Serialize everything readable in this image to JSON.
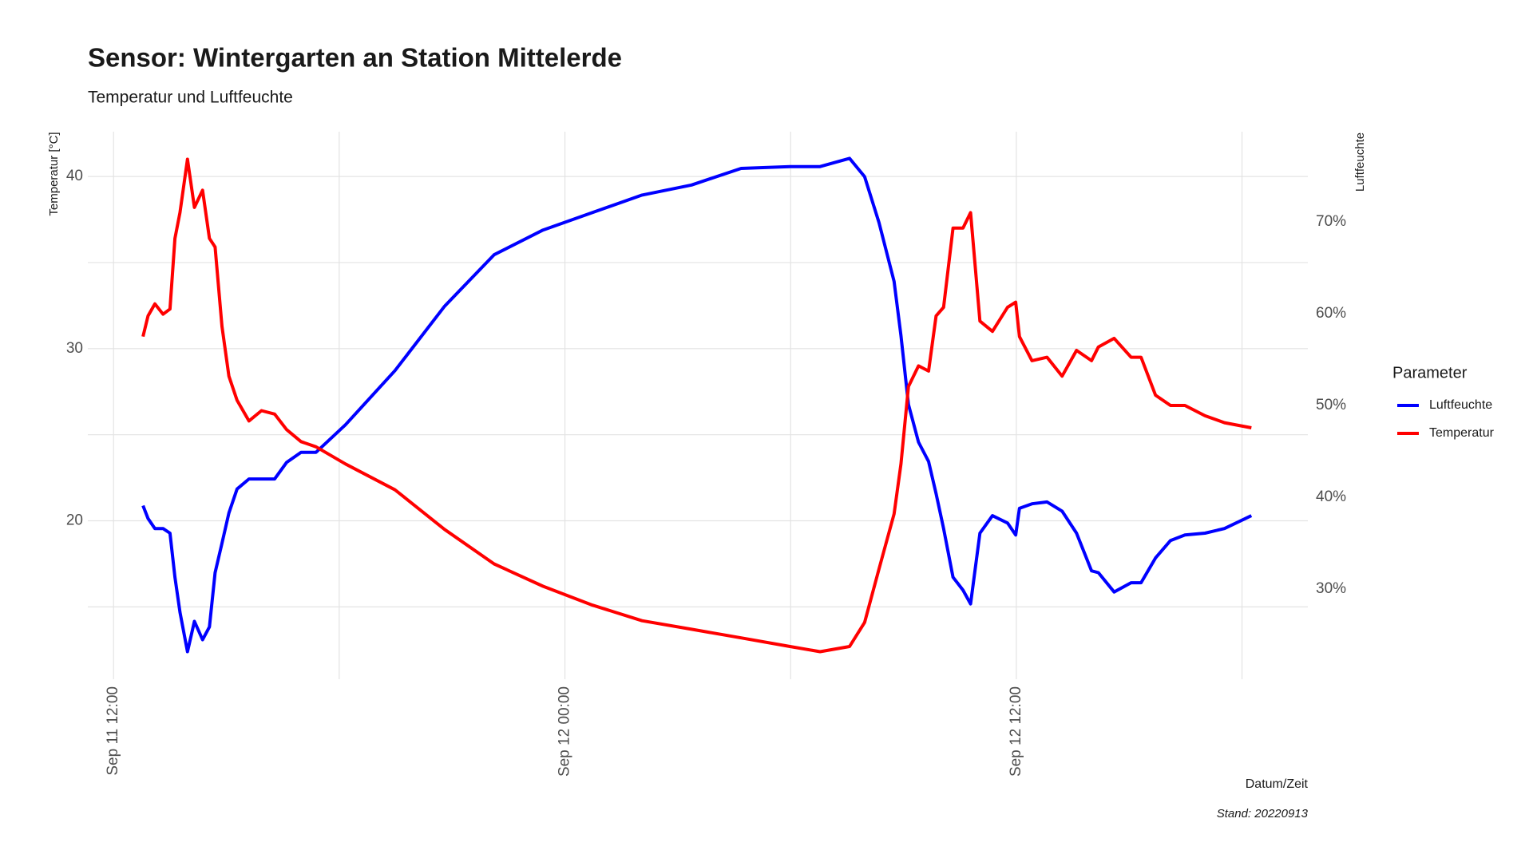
{
  "chart_data": {
    "type": "line",
    "title": "Sensor: Wintergarten an Station Mittelerde",
    "subtitle": "Temperatur und Luftfeuchte",
    "x_label": "Datum/Zeit",
    "y_label": "Temperatur [°C]",
    "y2_label": "Luftfeuchte",
    "caption": "Stand: 20220913",
    "legend_title": "Parameter",
    "legend": "right",
    "grid": true,
    "x": [
      "Sep 11 12:47",
      "Sep 11 12:55",
      "Sep 11 13:06",
      "Sep 11 13:19",
      "Sep 11 13:30",
      "Sep 11 13:38",
      "Sep 11 13:46",
      "Sep 11 13:58",
      "Sep 11 14:09",
      "Sep 11 14:22",
      "Sep 11 14:33",
      "Sep 11 14:42",
      "Sep 11 14:53",
      "Sep 11 15:04",
      "Sep 11 15:17",
      "Sep 11 15:36",
      "Sep 11 15:56",
      "Sep 11 16:17",
      "Sep 11 16:36",
      "Sep 11 16:59",
      "Sep 11 17:23",
      "Sep 11 18:10",
      "Sep 11 19:29",
      "Sep 11 20:48",
      "Sep 11 22:07",
      "Sep 11 23:25",
      "Sep 12 00:44",
      "Sep 12 02:03",
      "Sep 12 03:22",
      "Sep 12 04:41",
      "Sep 12 05:59",
      "Sep 12 06:47",
      "Sep 12 07:34",
      "Sep 12 07:58",
      "Sep 12 08:21",
      "Sep 12 08:45",
      "Sep 12 08:56",
      "Sep 12 09:08",
      "Sep 12 09:24",
      "Sep 12 09:40",
      "Sep 12 09:52",
      "Sep 12 10:04",
      "Sep 12 10:19",
      "Sep 12 10:35",
      "Sep 12 10:47",
      "Sep 12 11:02",
      "Sep 12 11:22",
      "Sep 12 11:46",
      "Sep 12 11:59",
      "Sep 12 12:05",
      "Sep 12 12:25",
      "Sep 12 12:49",
      "Sep 12 13:13",
      "Sep 12 13:36",
      "Sep 12 14:00",
      "Sep 12 14:11",
      "Sep 12 14:36",
      "Sep 12 15:03",
      "Sep 12 15:19",
      "Sep 12 15:42",
      "Sep 12 16:06",
      "Sep 12 16:29",
      "Sep 12 17:01",
      "Sep 12 17:32",
      "Sep 12 18:15"
    ],
    "series": [
      {
        "name": "Luftfeuchte",
        "color": "#0000ff",
        "axis": "y2",
        "values": [
          39.1,
          37.7,
          36.6,
          36.6,
          36.1,
          31.3,
          27.5,
          23.2,
          26.5,
          24.5,
          25.9,
          31.8,
          35.0,
          38.3,
          40.9,
          42.0,
          42.0,
          42.0,
          43.8,
          44.9,
          44.9,
          47.9,
          53.8,
          60.8,
          66.4,
          69.1,
          71.0,
          72.9,
          74.0,
          75.8,
          76.0,
          76.0,
          76.9,
          74.9,
          69.9,
          63.5,
          57.6,
          50.1,
          46.0,
          43.9,
          40.4,
          36.6,
          31.3,
          29.9,
          28.4,
          36.1,
          38.0,
          37.2,
          35.9,
          38.8,
          39.3,
          39.5,
          38.5,
          36.1,
          32.0,
          31.8,
          29.7,
          30.7,
          30.7,
          33.4,
          35.3,
          35.9,
          36.1,
          36.6,
          38.0
        ]
      },
      {
        "name": "Temperatur",
        "color": "#ff0000",
        "values": [
          30.7,
          31.9,
          32.6,
          32.0,
          32.3,
          36.4,
          37.9,
          41.0,
          38.2,
          39.2,
          36.4,
          35.9,
          31.3,
          28.4,
          27.0,
          25.8,
          26.4,
          26.2,
          25.3,
          24.6,
          24.3,
          23.3,
          21.8,
          19.5,
          17.5,
          16.2,
          15.1,
          14.2,
          13.7,
          13.2,
          12.7,
          12.4,
          12.7,
          14.1,
          17.2,
          20.4,
          23.3,
          27.8,
          29.0,
          28.7,
          31.9,
          32.4,
          37.0,
          37.0,
          37.9,
          31.6,
          31.0,
          32.4,
          32.7,
          30.7,
          29.3,
          29.5,
          28.4,
          29.9,
          29.3,
          30.1,
          30.6,
          29.5,
          29.5,
          27.3,
          26.7,
          26.7,
          26.1,
          25.7,
          25.4
        ]
      }
    ],
    "xlim": [
      "Sep 11 11:19",
      "Sep 12 19:45"
    ],
    "xticks": [
      "Sep 11 12:00",
      "Sep 12 00:00",
      "Sep 12 12:00"
    ],
    "xminorticks": [
      "Sep 11 18:00",
      "Sep 12 06:00",
      "Sep 12 18:00"
    ],
    "ylim": [
      10.8,
      42.6
    ],
    "yticks": [
      20,
      30,
      40
    ],
    "yminorticks": [
      15,
      25,
      35
    ],
    "y2lim": [
      20.2,
      79.8
    ],
    "y2ticks": [
      {
        "value": 30,
        "label": "30%"
      },
      {
        "value": 40,
        "label": "40%"
      },
      {
        "value": 50,
        "label": "50%"
      },
      {
        "value": 60,
        "label": "60%"
      },
      {
        "value": 70,
        "label": "70%"
      }
    ]
  }
}
